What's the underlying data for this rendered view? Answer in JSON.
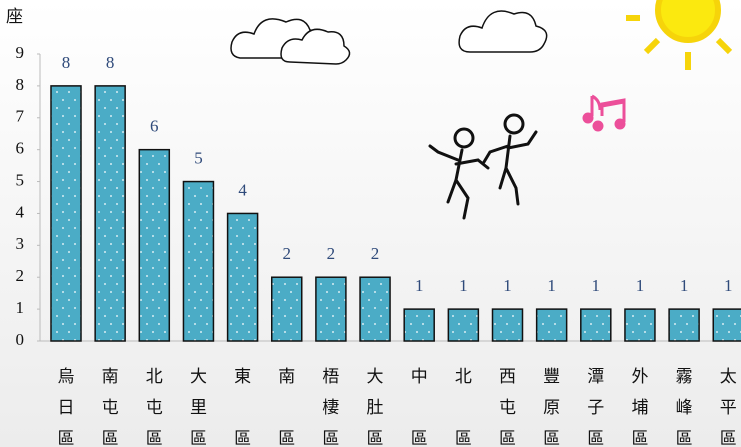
{
  "chart_data": {
    "type": "bar",
    "ylabel": "座",
    "categories": [
      "烏日區",
      "南屯區",
      "北屯區",
      "大里區",
      "東區",
      "南區",
      "梧棲區",
      "大肚區",
      "中區",
      "北區",
      "西屯區",
      "豐原區",
      "潭子區",
      "外埔區",
      "霧峰區",
      "太平區"
    ],
    "values": [
      8,
      8,
      6,
      5,
      4,
      2,
      2,
      2,
      1,
      1,
      1,
      1,
      1,
      1,
      1,
      1
    ],
    "color": "#4bacc6",
    "ylim": [
      0,
      9
    ],
    "yticks": [
      0,
      1,
      2,
      3,
      4,
      5,
      6,
      7,
      8,
      9
    ]
  }
}
